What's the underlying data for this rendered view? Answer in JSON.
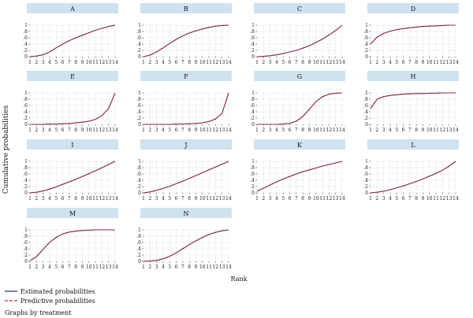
{
  "ylabel": "Cumulative probabilities",
  "xlabel": "Rank",
  "footer": "Graphs by treatment",
  "legend": [
    {
      "label": "Estimated probabilities",
      "color": "#1f2b5b",
      "dash": "solid"
    },
    {
      "label": "Predictive probabilities",
      "color": "#d6283a",
      "dash": "dashed"
    }
  ],
  "colors": {
    "strip": "#cfe2f0",
    "estimated": "#1f2b5b",
    "predictive": "#d6283a"
  },
  "chart_data": [
    {
      "type": "line",
      "title": "A",
      "x": [
        1,
        2,
        3,
        4,
        5,
        6,
        7,
        8,
        9,
        10,
        11,
        12,
        13,
        14
      ],
      "xlim": [
        1,
        14
      ],
      "ylim": [
        0,
        1
      ],
      "y_ticks": [
        0,
        0.2,
        0.4,
        0.6,
        0.8,
        1
      ],
      "y_tick_labels": [
        "0",
        ".2",
        ".4",
        ".6",
        ".8",
        "1"
      ],
      "grid": true,
      "series": [
        {
          "values": [
            0,
            0.02,
            0.06,
            0.15,
            0.28,
            0.4,
            0.51,
            0.6,
            0.68,
            0.76,
            0.84,
            0.9,
            0.96,
            1.0
          ]
        },
        {
          "values": [
            0,
            0.02,
            0.06,
            0.15,
            0.28,
            0.4,
            0.51,
            0.6,
            0.68,
            0.76,
            0.84,
            0.9,
            0.96,
            1.0
          ]
        }
      ]
    },
    {
      "type": "line",
      "title": "B",
      "x": [
        1,
        2,
        3,
        4,
        5,
        6,
        7,
        8,
        9,
        10,
        11,
        12,
        13,
        14
      ],
      "xlim": [
        1,
        14
      ],
      "ylim": [
        0,
        1
      ],
      "y_ticks": [
        0,
        0.2,
        0.4,
        0.6,
        0.8,
        1
      ],
      "y_tick_labels": [
        "0",
        ".2",
        ".4",
        ".6",
        ".8",
        "1"
      ],
      "grid": true,
      "series": [
        {
          "values": [
            0,
            0.05,
            0.15,
            0.28,
            0.42,
            0.55,
            0.66,
            0.75,
            0.82,
            0.88,
            0.93,
            0.97,
            0.99,
            1.0
          ]
        },
        {
          "values": [
            0,
            0.05,
            0.15,
            0.28,
            0.42,
            0.55,
            0.66,
            0.75,
            0.82,
            0.88,
            0.93,
            0.97,
            0.99,
            1.0
          ]
        }
      ]
    },
    {
      "type": "line",
      "title": "C",
      "x": [
        1,
        2,
        3,
        4,
        5,
        6,
        7,
        8,
        9,
        10,
        11,
        12,
        13,
        14
      ],
      "xlim": [
        1,
        14
      ],
      "ylim": [
        0,
        1
      ],
      "y_ticks": [
        0,
        0.2,
        0.4,
        0.6,
        0.8,
        1
      ],
      "y_tick_labels": [
        "0",
        ".2",
        ".4",
        ".6",
        ".8",
        "1"
      ],
      "grid": true,
      "series": [
        {
          "values": [
            0,
            0.01,
            0.03,
            0.06,
            0.1,
            0.15,
            0.2,
            0.27,
            0.35,
            0.45,
            0.56,
            0.69,
            0.83,
            1.0
          ]
        },
        {
          "values": [
            0,
            0.01,
            0.03,
            0.06,
            0.1,
            0.15,
            0.2,
            0.27,
            0.35,
            0.45,
            0.56,
            0.69,
            0.83,
            1.0
          ]
        }
      ]
    },
    {
      "type": "line",
      "title": "D",
      "x": [
        1,
        2,
        3,
        4,
        5,
        6,
        7,
        8,
        9,
        10,
        11,
        12,
        13,
        14
      ],
      "xlim": [
        1,
        14
      ],
      "ylim": [
        0,
        1
      ],
      "y_ticks": [
        0,
        0.2,
        0.4,
        0.6,
        0.8,
        1
      ],
      "y_tick_labels": [
        "0",
        ".2",
        ".4",
        ".6",
        ".8",
        "1"
      ],
      "grid": true,
      "series": [
        {
          "values": [
            0.4,
            0.62,
            0.74,
            0.81,
            0.86,
            0.89,
            0.92,
            0.94,
            0.96,
            0.97,
            0.98,
            0.99,
            1.0,
            1.0
          ]
        },
        {
          "values": [
            0.4,
            0.62,
            0.74,
            0.81,
            0.86,
            0.89,
            0.92,
            0.94,
            0.96,
            0.97,
            0.98,
            0.99,
            1.0,
            1.0
          ]
        }
      ]
    },
    {
      "type": "line",
      "title": "E",
      "x": [
        1,
        2,
        3,
        4,
        5,
        6,
        7,
        8,
        9,
        10,
        11,
        12,
        13,
        14
      ],
      "xlim": [
        1,
        14
      ],
      "ylim": [
        0,
        1
      ],
      "y_ticks": [
        0,
        0.2,
        0.4,
        0.6,
        0.8,
        1
      ],
      "y_tick_labels": [
        "0",
        ".2",
        ".4",
        ".6",
        ".8",
        "1"
      ],
      "grid": true,
      "series": [
        {
          "values": [
            0,
            0,
            0,
            0.01,
            0.01,
            0.02,
            0.03,
            0.05,
            0.07,
            0.1,
            0.16,
            0.28,
            0.5,
            1.0
          ]
        },
        {
          "values": [
            0,
            0,
            0,
            0.01,
            0.01,
            0.02,
            0.03,
            0.05,
            0.07,
            0.1,
            0.16,
            0.28,
            0.5,
            1.0
          ]
        }
      ]
    },
    {
      "type": "line",
      "title": "F",
      "x": [
        1,
        2,
        3,
        4,
        5,
        6,
        7,
        8,
        9,
        10,
        11,
        12,
        13,
        14
      ],
      "xlim": [
        1,
        14
      ],
      "ylim": [
        0,
        1
      ],
      "y_ticks": [
        0,
        0.2,
        0.4,
        0.6,
        0.8,
        1
      ],
      "y_tick_labels": [
        "0",
        ".2",
        ".4",
        ".6",
        ".8",
        "1"
      ],
      "grid": true,
      "series": [
        {
          "values": [
            0,
            0,
            0,
            0,
            0,
            0.01,
            0.01,
            0.02,
            0.03,
            0.05,
            0.09,
            0.17,
            0.35,
            1.0
          ]
        },
        {
          "values": [
            0,
            0,
            0,
            0,
            0,
            0.01,
            0.01,
            0.02,
            0.03,
            0.05,
            0.09,
            0.17,
            0.35,
            1.0
          ]
        }
      ]
    },
    {
      "type": "line",
      "title": "G",
      "x": [
        1,
        2,
        3,
        4,
        5,
        6,
        7,
        8,
        9,
        10,
        11,
        12,
        13,
        14
      ],
      "xlim": [
        1,
        14
      ],
      "ylim": [
        0,
        1
      ],
      "y_ticks": [
        0,
        0.2,
        0.4,
        0.6,
        0.8,
        1
      ],
      "y_tick_labels": [
        "0",
        ".2",
        ".4",
        ".6",
        ".8",
        "1"
      ],
      "grid": true,
      "series": [
        {
          "values": [
            0,
            0,
            0,
            0,
            0.01,
            0.03,
            0.1,
            0.25,
            0.48,
            0.72,
            0.88,
            0.96,
            0.99,
            1.0
          ]
        },
        {
          "values": [
            0,
            0,
            0,
            0,
            0.01,
            0.03,
            0.1,
            0.25,
            0.48,
            0.72,
            0.88,
            0.96,
            0.99,
            1.0
          ]
        }
      ]
    },
    {
      "type": "line",
      "title": "H",
      "x": [
        1,
        2,
        3,
        4,
        5,
        6,
        7,
        8,
        9,
        10,
        11,
        12,
        13,
        14
      ],
      "xlim": [
        1,
        14
      ],
      "ylim": [
        0,
        1
      ],
      "y_ticks": [
        0,
        0.2,
        0.4,
        0.6,
        0.8,
        1
      ],
      "y_tick_labels": [
        "0",
        ".2",
        ".4",
        ".6",
        ".8",
        "1"
      ],
      "grid": true,
      "series": [
        {
          "values": [
            0.5,
            0.8,
            0.88,
            0.92,
            0.94,
            0.96,
            0.97,
            0.98,
            0.98,
            0.99,
            0.99,
            1.0,
            1.0,
            1.0
          ]
        },
        {
          "values": [
            0.5,
            0.8,
            0.88,
            0.92,
            0.94,
            0.96,
            0.97,
            0.98,
            0.98,
            0.99,
            0.99,
            1.0,
            1.0,
            1.0
          ]
        }
      ]
    },
    {
      "type": "line",
      "title": "I",
      "x": [
        1,
        2,
        3,
        4,
        5,
        6,
        7,
        8,
        9,
        10,
        11,
        12,
        13,
        14
      ],
      "xlim": [
        1,
        14
      ],
      "ylim": [
        0,
        1
      ],
      "y_ticks": [
        0,
        0.2,
        0.4,
        0.6,
        0.8,
        1
      ],
      "y_tick_labels": [
        "0",
        ".2",
        ".4",
        ".6",
        ".8",
        "1"
      ],
      "grid": true,
      "series": [
        {
          "values": [
            0,
            0.02,
            0.06,
            0.12,
            0.19,
            0.27,
            0.35,
            0.43,
            0.52,
            0.61,
            0.7,
            0.8,
            0.9,
            1.0
          ]
        },
        {
          "values": [
            0,
            0.02,
            0.06,
            0.12,
            0.19,
            0.27,
            0.35,
            0.43,
            0.52,
            0.61,
            0.7,
            0.8,
            0.9,
            1.0
          ]
        }
      ]
    },
    {
      "type": "line",
      "title": "J",
      "x": [
        1,
        2,
        3,
        4,
        5,
        6,
        7,
        8,
        9,
        10,
        11,
        12,
        13,
        14
      ],
      "xlim": [
        1,
        14
      ],
      "ylim": [
        0,
        1
      ],
      "y_ticks": [
        0,
        0.2,
        0.4,
        0.6,
        0.8,
        1
      ],
      "y_tick_labels": [
        "0",
        ".2",
        ".4",
        ".6",
        ".8",
        "1"
      ],
      "grid": true,
      "series": [
        {
          "values": [
            0,
            0.03,
            0.08,
            0.14,
            0.21,
            0.29,
            0.37,
            0.46,
            0.55,
            0.64,
            0.73,
            0.82,
            0.91,
            1.0
          ]
        },
        {
          "values": [
            0,
            0.03,
            0.08,
            0.14,
            0.21,
            0.29,
            0.37,
            0.46,
            0.55,
            0.64,
            0.73,
            0.82,
            0.91,
            1.0
          ]
        }
      ]
    },
    {
      "type": "line",
      "title": "K",
      "x": [
        1,
        2,
        3,
        4,
        5,
        6,
        7,
        8,
        9,
        10,
        11,
        12,
        13,
        14
      ],
      "xlim": [
        1,
        14
      ],
      "ylim": [
        0,
        1
      ],
      "y_ticks": [
        0,
        0.2,
        0.4,
        0.6,
        0.8,
        1
      ],
      "y_tick_labels": [
        "0",
        ".2",
        ".4",
        ".6",
        ".8",
        "1"
      ],
      "grid": true,
      "series": [
        {
          "values": [
            0.05,
            0.15,
            0.25,
            0.35,
            0.44,
            0.52,
            0.6,
            0.67,
            0.73,
            0.79,
            0.85,
            0.9,
            0.95,
            1.0
          ]
        },
        {
          "values": [
            0.05,
            0.15,
            0.25,
            0.35,
            0.44,
            0.52,
            0.6,
            0.67,
            0.73,
            0.79,
            0.85,
            0.9,
            0.95,
            1.0
          ]
        }
      ]
    },
    {
      "type": "line",
      "title": "L",
      "x": [
        1,
        2,
        3,
        4,
        5,
        6,
        7,
        8,
        9,
        10,
        11,
        12,
        13,
        14
      ],
      "xlim": [
        1,
        14
      ],
      "ylim": [
        0,
        1
      ],
      "y_ticks": [
        0,
        0.2,
        0.4,
        0.6,
        0.8,
        1
      ],
      "y_tick_labels": [
        "0",
        ".2",
        ".4",
        ".6",
        ".8",
        "1"
      ],
      "grid": true,
      "series": [
        {
          "values": [
            0,
            0.02,
            0.05,
            0.1,
            0.16,
            0.22,
            0.29,
            0.36,
            0.44,
            0.53,
            0.62,
            0.72,
            0.85,
            1.0
          ]
        },
        {
          "values": [
            0,
            0.02,
            0.05,
            0.1,
            0.16,
            0.22,
            0.29,
            0.36,
            0.44,
            0.53,
            0.62,
            0.72,
            0.85,
            1.0
          ]
        }
      ]
    },
    {
      "type": "line",
      "title": "M",
      "x": [
        1,
        2,
        3,
        4,
        5,
        6,
        7,
        8,
        9,
        10,
        11,
        12,
        13,
        14
      ],
      "xlim": [
        1,
        14
      ],
      "ylim": [
        0,
        1
      ],
      "y_ticks": [
        0,
        0.2,
        0.4,
        0.6,
        0.8,
        1
      ],
      "y_tick_labels": [
        "0",
        ".2",
        ".4",
        ".6",
        ".8",
        "1"
      ],
      "grid": true,
      "series": [
        {
          "values": [
            0.02,
            0.15,
            0.38,
            0.6,
            0.76,
            0.87,
            0.93,
            0.96,
            0.98,
            0.99,
            1.0,
            1.0,
            1.0,
            1.0
          ]
        },
        {
          "values": [
            0.02,
            0.15,
            0.38,
            0.6,
            0.76,
            0.87,
            0.93,
            0.96,
            0.98,
            0.99,
            1.0,
            1.0,
            1.0,
            1.0
          ]
        }
      ]
    },
    {
      "type": "line",
      "title": "N",
      "x": [
        1,
        2,
        3,
        4,
        5,
        6,
        7,
        8,
        9,
        10,
        11,
        12,
        13,
        14
      ],
      "xlim": [
        1,
        14
      ],
      "ylim": [
        0,
        1
      ],
      "y_ticks": [
        0,
        0.2,
        0.4,
        0.6,
        0.8,
        1
      ],
      "y_tick_labels": [
        "0",
        ".2",
        ".4",
        ".6",
        ".8",
        "1"
      ],
      "grid": true,
      "series": [
        {
          "values": [
            0,
            0.01,
            0.03,
            0.08,
            0.16,
            0.27,
            0.4,
            0.53,
            0.65,
            0.76,
            0.85,
            0.92,
            0.97,
            1.0
          ]
        },
        {
          "values": [
            0,
            0.01,
            0.03,
            0.08,
            0.16,
            0.27,
            0.4,
            0.53,
            0.65,
            0.76,
            0.85,
            0.92,
            0.97,
            1.0
          ]
        }
      ]
    }
  ]
}
